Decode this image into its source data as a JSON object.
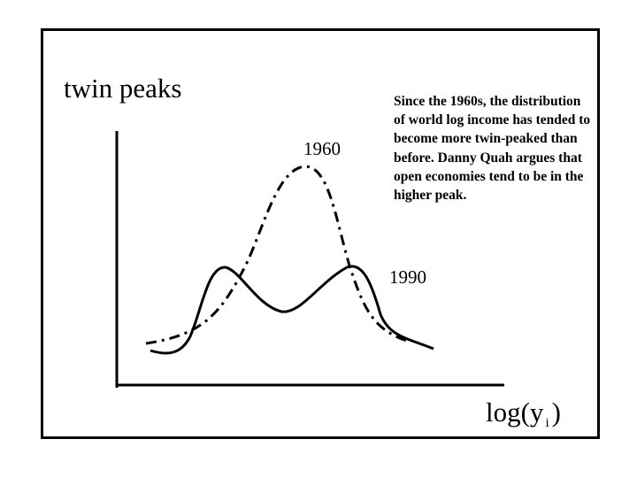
{
  "slide": {
    "title": "twin peaks",
    "caption": "Since the 1960s, the distribution of world log income has tended to become more twin-peaked than before.  Danny Quah argues that open economies tend to be in the higher peak."
  },
  "diagram": {
    "x_axis_label": {
      "text": "log(y",
      "subscript": "i",
      "close": ")"
    },
    "curves": [
      {
        "name": "1960",
        "label": "1960",
        "style": "dash-dot",
        "shape": "single peak"
      },
      {
        "name": "1990",
        "label": "1990",
        "style": "solid",
        "shape": "twin peaks"
      }
    ]
  }
}
